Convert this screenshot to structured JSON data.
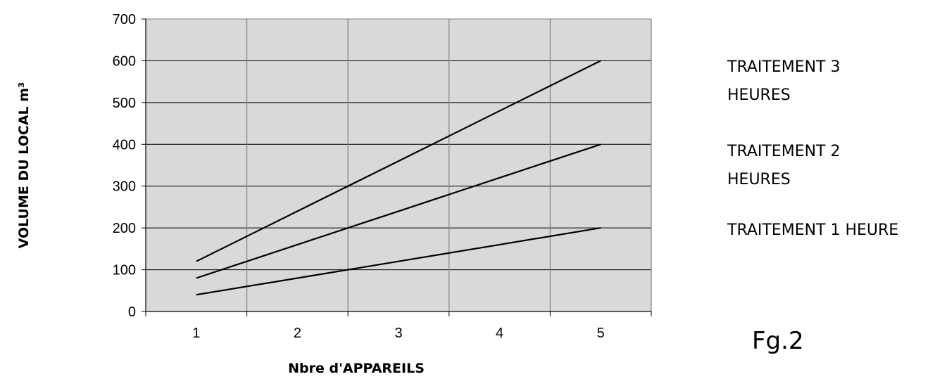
{
  "chart_data": {
    "type": "line",
    "xlabel": "Nbre d'APPAREILS",
    "ylabel": "VOLUME DU LOCAL m³",
    "categories": [
      "1",
      "2",
      "3",
      "4",
      "5"
    ],
    "x": [
      1,
      2,
      3,
      4,
      5
    ],
    "ylim": [
      0,
      700
    ],
    "yticks": [
      0,
      100,
      200,
      300,
      400,
      500,
      600,
      700
    ],
    "grid": true,
    "plot_background": "#d9d9d9",
    "line_color": "#000000",
    "series": [
      {
        "name": "TRAITEMENT 3 HEURES",
        "values": [
          120,
          240,
          360,
          480,
          600
        ]
      },
      {
        "name": "TRAITEMENT 2 HEURES",
        "values": [
          80,
          160,
          240,
          320,
          400
        ]
      },
      {
        "name": "TRAITEMENT 1 HEURE",
        "values": [
          40,
          80,
          120,
          160,
          200
        ]
      }
    ],
    "legend": [
      {
        "lines": [
          "TRAITEMENT 3",
          "HEURES"
        ]
      },
      {
        "lines": [
          "TRAITEMENT 2",
          "HEURES"
        ]
      },
      {
        "lines": [
          "TRAITEMENT 1 HEURE"
        ]
      }
    ],
    "legend_position": "right"
  },
  "figure_label": "Fg.2"
}
